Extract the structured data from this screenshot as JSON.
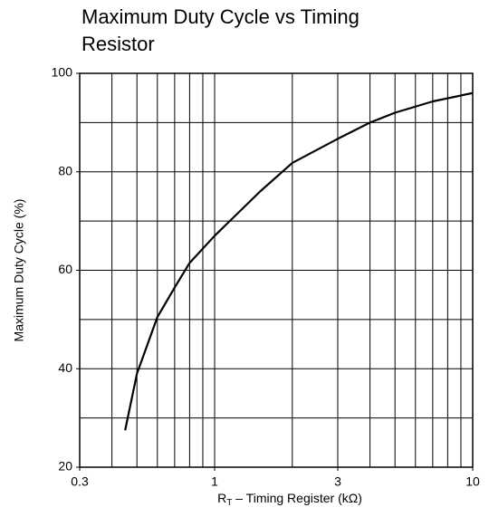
{
  "chart_data": {
    "type": "line",
    "title": "Maximum Duty Cycle vs Timing Resistor",
    "xlabel": {
      "main": "R",
      "sub": "T",
      "rest": " – Timing Register (kΩ)"
    },
    "ylabel": "Maximum Duty Cycle (%)",
    "x": [
      0.45,
      0.5,
      0.6,
      0.7,
      0.8,
      1,
      1.5,
      2,
      3,
      4,
      5,
      7,
      10
    ],
    "series": [
      {
        "name": "Maximum Duty Cycle",
        "color": "#000000",
        "values": [
          27.5,
          39,
          50.5,
          56.5,
          61.5,
          67,
          76,
          81.8,
          86.7,
          90,
          92,
          94.3,
          96
        ]
      }
    ],
    "xlim": [
      0.3,
      10
    ],
    "xscale": "log",
    "xticks": [
      0.3,
      1,
      3,
      10
    ],
    "x_grid": [
      0.4,
      0.5,
      0.6,
      0.7,
      0.8,
      0.9,
      1,
      2,
      3,
      4,
      5,
      6,
      7,
      8,
      9
    ],
    "ylim": [
      20,
      100
    ],
    "yticks": [
      20,
      40,
      60,
      80,
      100
    ],
    "y_grid": [
      30,
      40,
      50,
      60,
      70,
      80,
      90
    ],
    "grid": true
  }
}
